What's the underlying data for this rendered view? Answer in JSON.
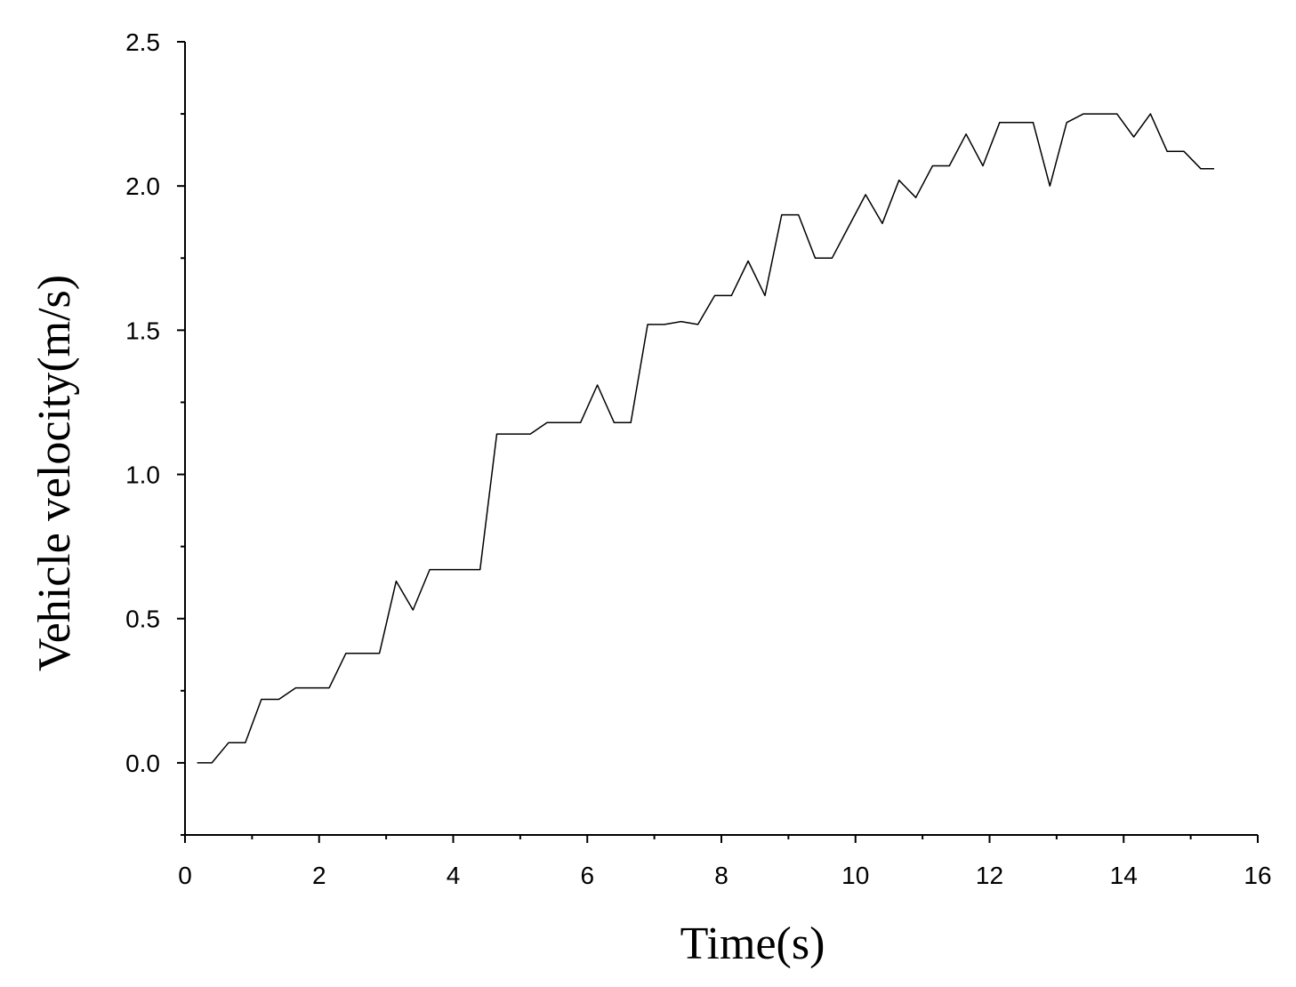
{
  "chart_data": {
    "type": "line",
    "title": "",
    "xlabel": "Time(s)",
    "ylabel": "Vehicle velocity(m/s)",
    "xlim": [
      0,
      16
    ],
    "ylim": [
      -0.25,
      2.5
    ],
    "x_major_ticks": [
      0,
      2,
      4,
      6,
      8,
      10,
      12,
      14,
      16
    ],
    "x_tick_labels": [
      "0",
      "2",
      "4",
      "6",
      "8",
      "10",
      "12",
      "14",
      "16"
    ],
    "x_minor_step": 1,
    "y_major_ticks": [
      0.0,
      0.5,
      1.0,
      1.5,
      2.0,
      2.5
    ],
    "y_tick_labels": [
      "0.0",
      "0.5",
      "1.0",
      "1.5",
      "2.0",
      "2.5"
    ],
    "y_minor_step": 0.25,
    "grid": false,
    "legend": "none",
    "series": [
      {
        "color": "#000000",
        "x": [
          0.18,
          0.4,
          0.65,
          0.9,
          1.14,
          1.4,
          1.65,
          1.9,
          2.15,
          2.4,
          2.65,
          2.9,
          3.15,
          3.4,
          3.65,
          3.9,
          4.15,
          4.4,
          4.65,
          4.9,
          5.15,
          5.4,
          5.65,
          5.9,
          6.15,
          6.4,
          6.65,
          6.9,
          7.15,
          7.4,
          7.65,
          7.9,
          8.15,
          8.4,
          8.65,
          8.9,
          9.15,
          9.4,
          9.65,
          9.9,
          10.15,
          10.4,
          10.65,
          10.9,
          11.15,
          11.4,
          11.65,
          11.9,
          12.15,
          12.4,
          12.65,
          12.9,
          13.15,
          13.4,
          13.65,
          13.9,
          14.15,
          14.4,
          14.65,
          14.9,
          15.15,
          15.35
        ],
        "y": [
          0.0,
          0.0,
          0.07,
          0.07,
          0.22,
          0.22,
          0.26,
          0.26,
          0.26,
          0.38,
          0.38,
          0.38,
          0.63,
          0.53,
          0.67,
          0.67,
          0.67,
          0.67,
          1.14,
          1.14,
          1.14,
          1.18,
          1.18,
          1.18,
          1.31,
          1.18,
          1.18,
          1.52,
          1.52,
          1.53,
          1.52,
          1.62,
          1.62,
          1.74,
          1.62,
          1.9,
          1.9,
          1.75,
          1.75,
          1.86,
          1.97,
          1.87,
          2.02,
          1.96,
          2.07,
          2.07,
          2.18,
          2.07,
          2.22,
          2.22,
          2.22,
          2.0,
          2.22,
          2.25,
          2.25,
          2.25,
          2.17,
          2.25,
          2.12,
          2.12,
          2.06,
          2.06
        ]
      }
    ]
  }
}
